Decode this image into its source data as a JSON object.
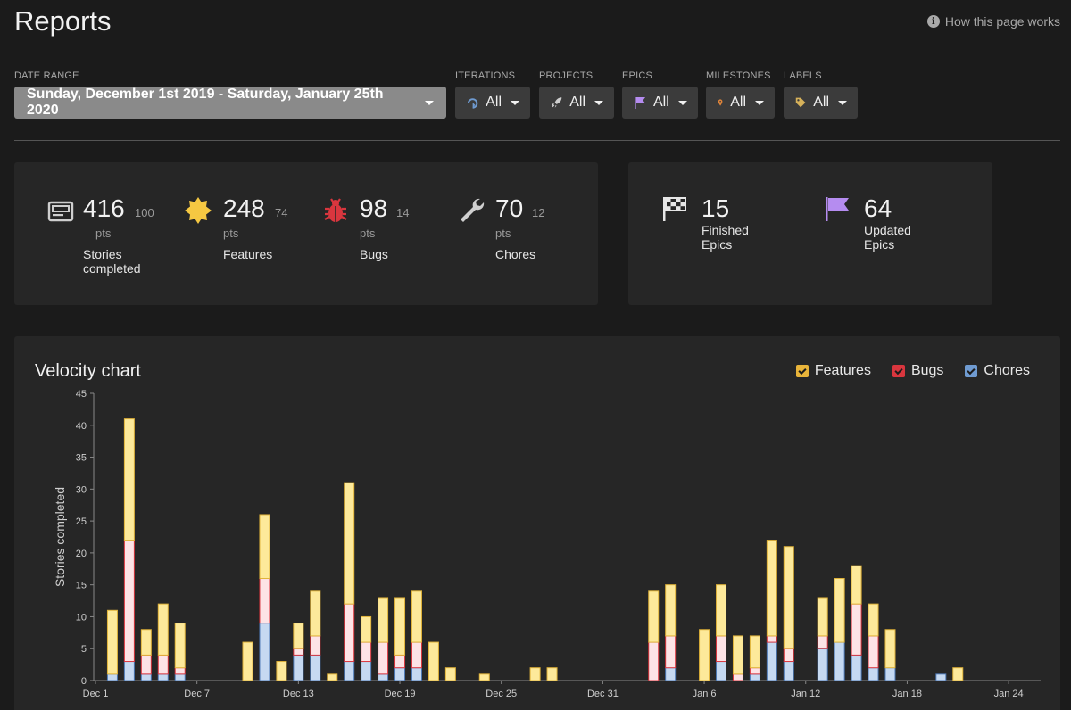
{
  "header": {
    "title": "Reports",
    "help_label": "How this page works"
  },
  "filters": {
    "date_range": {
      "label": "DATE RANGE",
      "value": "Sunday, December 1st 2019 - Saturday, January 25th 2020"
    },
    "iterations": {
      "label": "ITERATIONS",
      "value": "All",
      "icon": "iteration-icon"
    },
    "projects": {
      "label": "PROJECTS",
      "value": "All",
      "icon": "rocket-icon"
    },
    "epics": {
      "label": "EPICS",
      "value": "All",
      "icon": "flag-icon"
    },
    "milestones": {
      "label": "MILESTONES",
      "value": "All",
      "icon": "map-pin-icon"
    },
    "labels": {
      "label": "LABELS",
      "value": "All",
      "icon": "tag-icon"
    }
  },
  "stats": {
    "stories": {
      "value": "416",
      "sub": "100",
      "unit": "pts",
      "label_line1": "Stories",
      "label_line2": "completed"
    },
    "features": {
      "value": "248",
      "sub": "74",
      "unit": "pts",
      "label": "Features"
    },
    "bugs": {
      "value": "98",
      "sub": "14",
      "unit": "pts",
      "label": "Bugs"
    },
    "chores": {
      "value": "70",
      "sub": "12",
      "unit": "pts",
      "label": "Chores"
    }
  },
  "epics": {
    "finished": {
      "value": "15",
      "label": "Finished Epics"
    },
    "updated": {
      "value": "64",
      "label": "Updated Epics"
    }
  },
  "colors": {
    "features": "#fde99a",
    "features_stroke": "#e0b33a",
    "bugs": "#fde3e6",
    "bugs_stroke": "#d9363e",
    "chores": "#c6d9f1",
    "chores_stroke": "#4d79b5",
    "legend_features": "#e8b43a",
    "legend_bugs": "#d9363e",
    "legend_chores": "#6f9bd1"
  },
  "chart_data": {
    "type": "bar",
    "stacked": true,
    "title": "Velocity chart",
    "ylabel": "Stories completed",
    "ylim": [
      0,
      45
    ],
    "yticks": [
      0,
      5,
      10,
      15,
      20,
      25,
      30,
      35,
      40,
      45
    ],
    "x_start_label": "Dec 1",
    "x_days": 56,
    "xtick_labels": [
      "Dec 1",
      "Dec 7",
      "Dec 13",
      "Dec 19",
      "Dec 25",
      "Dec 31",
      "Jan 6",
      "Jan 12",
      "Jan 18",
      "Jan 24"
    ],
    "legend": [
      "Features",
      "Bugs",
      "Chores"
    ],
    "dates": [
      "Dec 2",
      "Dec 3",
      "Dec 4",
      "Dec 5",
      "Dec 6",
      "Dec 10",
      "Dec 11",
      "Dec 12",
      "Dec 13",
      "Dec 14",
      "Dec 15",
      "Dec 16",
      "Dec 17",
      "Dec 18",
      "Dec 19",
      "Dec 20",
      "Dec 21",
      "Dec 22",
      "Dec 24",
      "Dec 27",
      "Dec 28",
      "Dec 31",
      "Jan 1",
      "Jan 3",
      "Jan 4",
      "Jan 6",
      "Jan 7",
      "Jan 8",
      "Jan 9",
      "Jan 10",
      "Jan 11",
      "Jan 12",
      "Jan 13",
      "Jan 14",
      "Jan 15",
      "Jan 16",
      "Jan 17",
      "Jan 20",
      "Jan 21"
    ],
    "series": [
      {
        "name": "Chores",
        "values": [
          1,
          3,
          1,
          1,
          1,
          0,
          9,
          0,
          4,
          4,
          0,
          3,
          3,
          1,
          2,
          2,
          0,
          0,
          0,
          0,
          0,
          0,
          0,
          0,
          2,
          0,
          3,
          0,
          1,
          6,
          3,
          0,
          5,
          6,
          4,
          2,
          2,
          1,
          0
        ]
      },
      {
        "name": "Bugs",
        "values": [
          0,
          19,
          3,
          3,
          1,
          0,
          7,
          0,
          1,
          3,
          0,
          9,
          3,
          5,
          2,
          4,
          0,
          0,
          0,
          0,
          0,
          0,
          0,
          6,
          5,
          0,
          4,
          1,
          1,
          1,
          2,
          0,
          2,
          0,
          8,
          5,
          0,
          0,
          0
        ]
      },
      {
        "name": "Features",
        "values": [
          10,
          19,
          4,
          8,
          7,
          6,
          10,
          3,
          4,
          7,
          1,
          19,
          4,
          7,
          9,
          8,
          6,
          2,
          1,
          2,
          2,
          0,
          0,
          8,
          8,
          8,
          8,
          6,
          5,
          15,
          16,
          0,
          6,
          10,
          6,
          5,
          6,
          0,
          2
        ]
      }
    ]
  }
}
